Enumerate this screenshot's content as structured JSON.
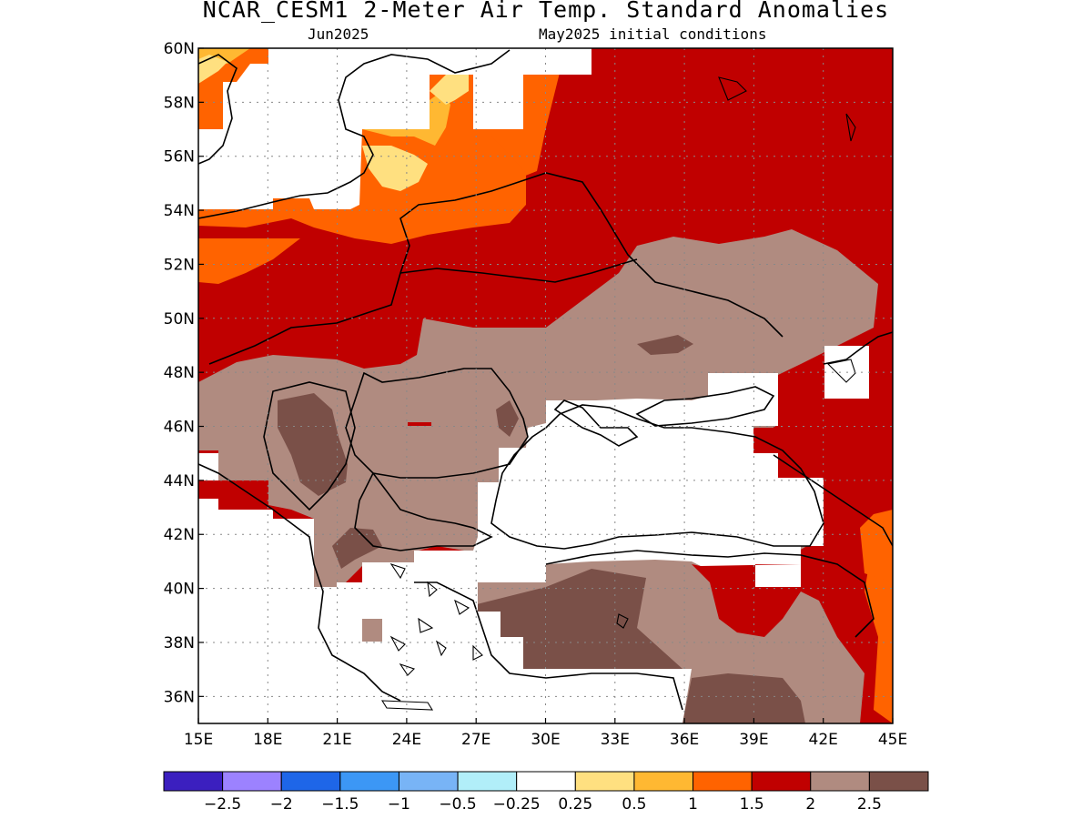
{
  "header": {
    "title": "NCAR_CESM1 2-Meter Air Temp. Standard Anomalies",
    "valid_month": "Jun2025",
    "initial_conditions": "May2025 initial conditions"
  },
  "map": {
    "lon_range": [
      15,
      45
    ],
    "lat_range": [
      35,
      60
    ],
    "lon_ticks": [
      "15E",
      "18E",
      "21E",
      "24E",
      "27E",
      "30E",
      "33E",
      "36E",
      "39E",
      "42E",
      "45E"
    ],
    "lat_ticks": [
      "60N",
      "58N",
      "56N",
      "54N",
      "52N",
      "50N",
      "48N",
      "46N",
      "44N",
      "42N",
      "40N"
    ],
    "lat_ticks_2": [
      "38N",
      "36N"
    ],
    "gridlines": true,
    "colors": {
      "c05": "#ffe080",
      "c1": "#ffb832",
      "c15": "#ff6300",
      "c2": "#c00000",
      "c25": "#b08b80",
      "c3": "#7a5048"
    }
  },
  "colorbar": {
    "colors": [
      "#3b1fbf",
      "#9c82ff",
      "#1e66e8",
      "#3c97f5",
      "#78b4f6",
      "#b1eef9",
      "#ffffff",
      "#ffe080",
      "#ffb832",
      "#ff6300",
      "#c00000",
      "#b08b80",
      "#7a5048"
    ],
    "labels": [
      "-2.5",
      "-2",
      "-1.5",
      "-1",
      "-0.5",
      "-0.25",
      "0.25",
      "0.5",
      "1",
      "1.5",
      "2",
      "2.5"
    ]
  }
}
